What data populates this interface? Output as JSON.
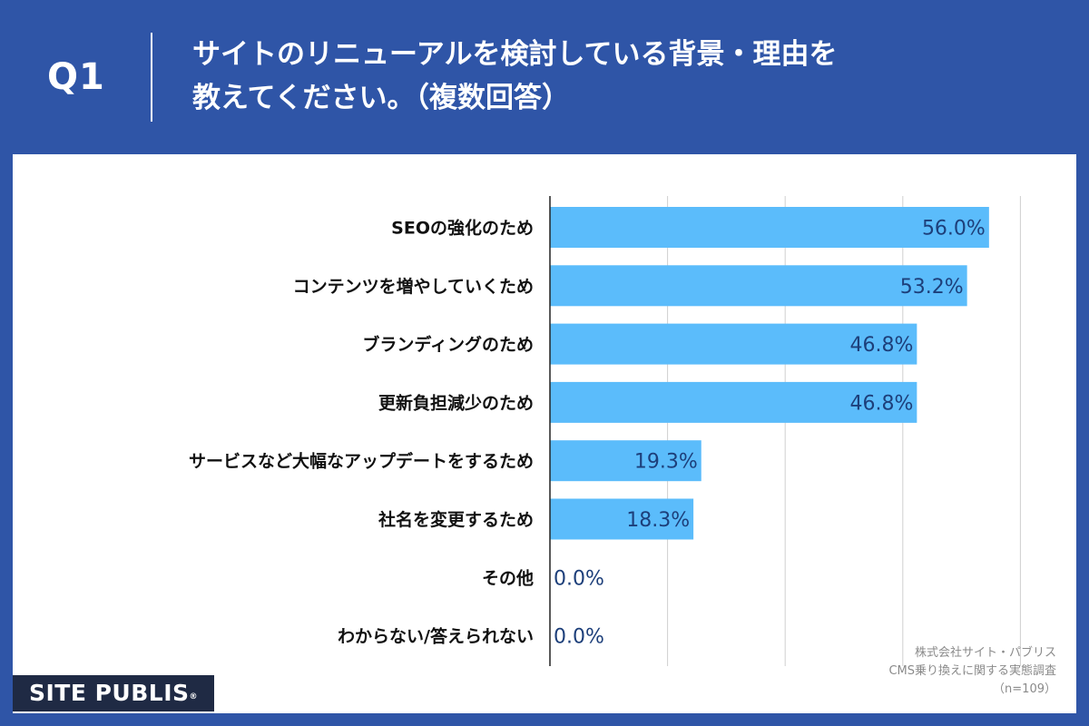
{
  "header": {
    "question_number": "Q1",
    "title_line1": "サイトのリニューアルを検討している背景・理由を",
    "title_line2": "教えてください。（複数回答）"
  },
  "chart_data": {
    "type": "bar",
    "orientation": "horizontal",
    "categories": [
      "SEOの強化のため",
      "コンテンツを増やしていくため",
      "ブランディングのため",
      "更新負担減少のため",
      "サービスなど大幅なアップデートをするため",
      "社名を変更するため",
      "その他",
      "わからない/答えられない"
    ],
    "values": [
      56.0,
      53.2,
      46.8,
      46.8,
      19.3,
      18.3,
      0.0,
      0.0
    ],
    "value_labels": [
      "56.0%",
      "53.2%",
      "46.8%",
      "46.8%",
      "19.3%",
      "18.3%",
      "0.0%",
      "0.0%"
    ],
    "xlim": [
      0,
      60
    ],
    "grid": true,
    "bar_color": "#5bbcfb",
    "label_color": "#1d3f7a"
  },
  "credit": {
    "line1": "株式会社サイト・パブリス",
    "line2": "CMS乗り換えに関する実態調査",
    "line3": "（n=109）"
  },
  "logo": {
    "text": "SITE PUBLIS",
    "mark": "®"
  },
  "colors": {
    "background": "#2f55a7",
    "panel": "#ffffff",
    "bar": "#5bbcfb",
    "value_text": "#1d3f7a",
    "gridline": "#cfcfcf"
  }
}
